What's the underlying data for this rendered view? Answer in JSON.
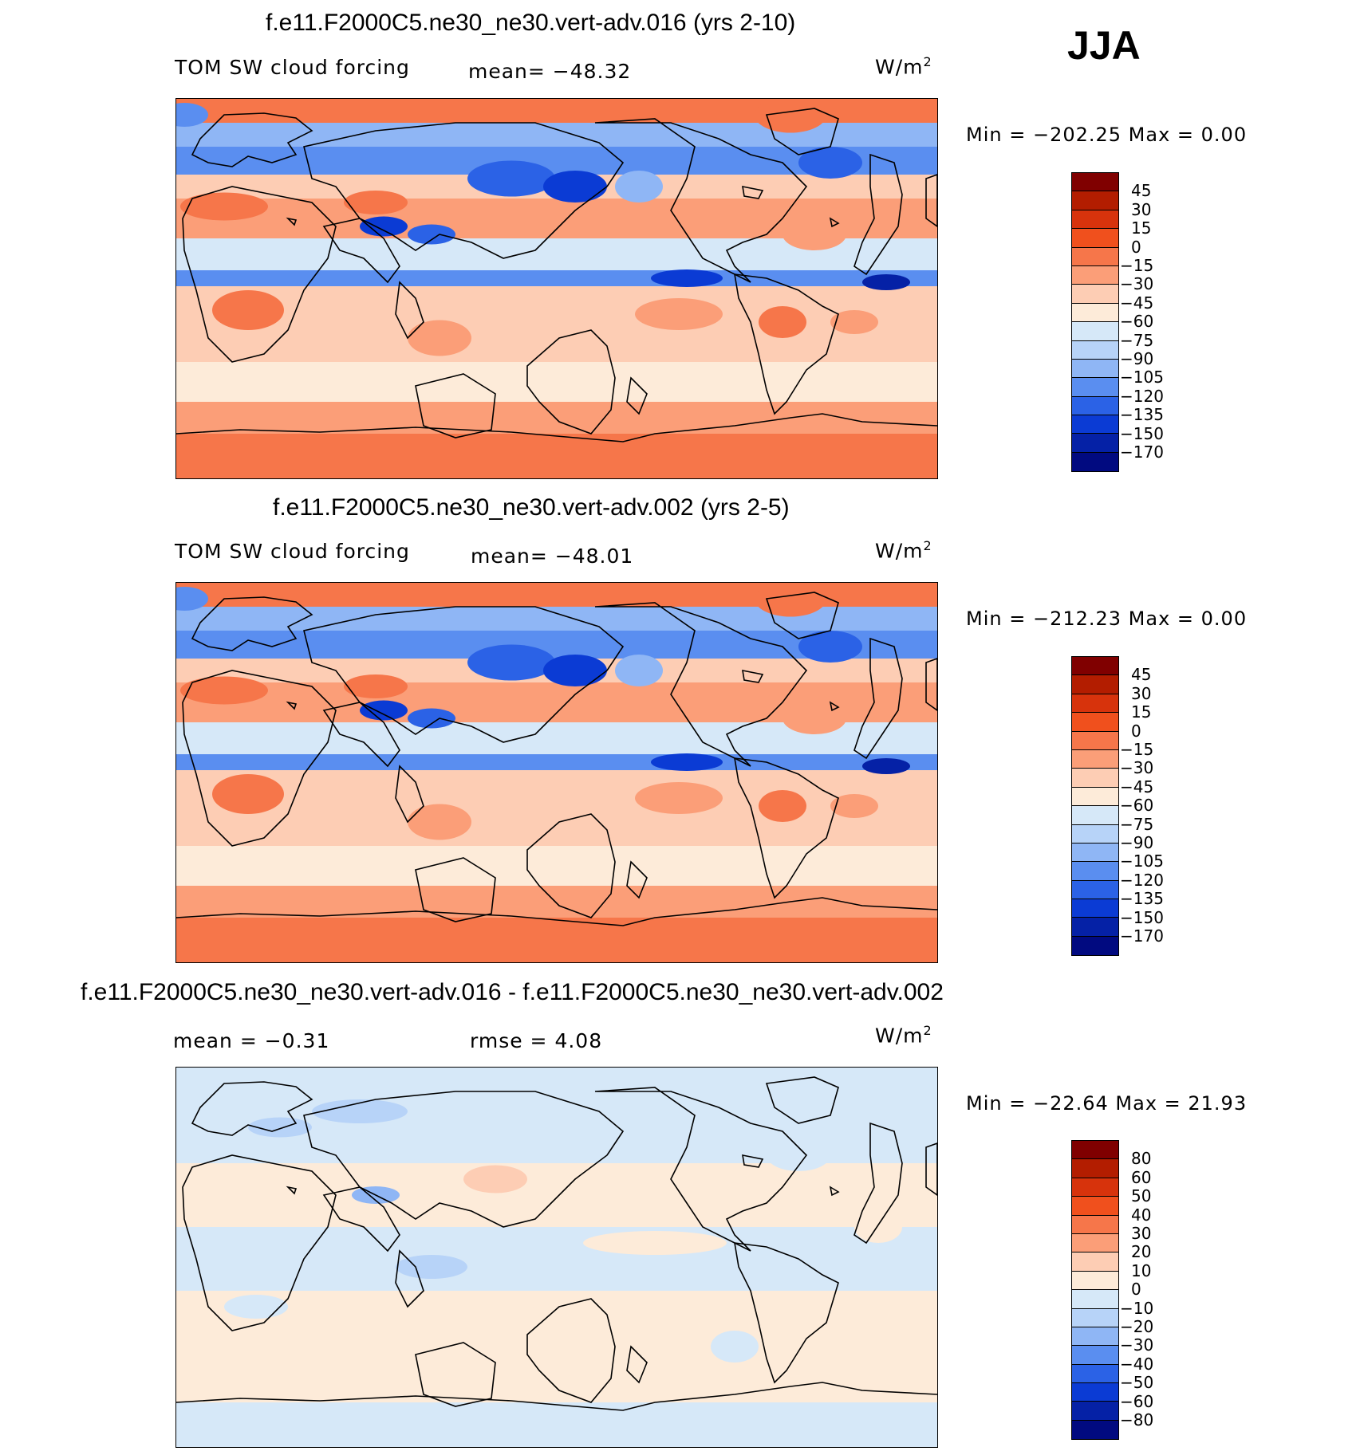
{
  "season": "JJA",
  "chart_data": [
    {
      "type": "heatmap",
      "title": "f.e11.F2000C5.ne30_ne30.vert-adv.016 (yrs 2-10)",
      "variable": "TOM SW cloud forcing",
      "mean_label": "mean= −48.32",
      "units_base": "W/m",
      "units_exp": "2",
      "min_max": "Min = −202.25 Max =    0.00",
      "min": -202.25,
      "max": 0.0,
      "colorbar": {
        "levels": [
          "45",
          "30",
          "15",
          "0",
          "−15",
          "−30",
          "−45",
          "−60",
          "−75",
          "−90",
          "−105",
          "−120",
          "−135",
          "−150",
          "−170"
        ],
        "colors": [
          "#800000",
          "#b31d00",
          "#d7330c",
          "#f0501d",
          "#f6764a",
          "#fb9e78",
          "#fdcdb4",
          "#fdebd9",
          "#d6e8f8",
          "#b7d3f8",
          "#8fb6f5",
          "#5a8ef0",
          "#2b62e6",
          "#0b3bd4",
          "#0521a6",
          "#010a80"
        ]
      }
    },
    {
      "type": "heatmap",
      "title": "f.e11.F2000C5.ne30_ne30.vert-adv.002 (yrs 2-5)",
      "variable": "TOM SW cloud forcing",
      "mean_label": "mean= −48.01",
      "units_base": "W/m",
      "units_exp": "2",
      "min_max": "Min = −212.23 Max =    0.00",
      "min": -212.23,
      "max": 0.0,
      "colorbar": {
        "levels": [
          "45",
          "30",
          "15",
          "0",
          "−15",
          "−30",
          "−45",
          "−60",
          "−75",
          "−90",
          "−105",
          "−120",
          "−135",
          "−150",
          "−170"
        ],
        "colors": [
          "#800000",
          "#b31d00",
          "#d7330c",
          "#f0501d",
          "#f6764a",
          "#fb9e78",
          "#fdcdb4",
          "#fdebd9",
          "#d6e8f8",
          "#b7d3f8",
          "#8fb6f5",
          "#5a8ef0",
          "#2b62e6",
          "#0b3bd4",
          "#0521a6",
          "#010a80"
        ]
      }
    },
    {
      "type": "heatmap",
      "title": "f.e11.F2000C5.ne30_ne30.vert-adv.016 - f.e11.F2000C5.ne30_ne30.vert-adv.002",
      "mean_label": "mean =   −0.31",
      "rmse_label": "rmse =     4.08",
      "units_base": "W/m",
      "units_exp": "2",
      "min_max": "Min = −22.64 Max =  21.93",
      "min": -22.64,
      "max": 21.93,
      "colorbar": {
        "levels": [
          "80",
          "60",
          "50",
          "40",
          "30",
          "20",
          "10",
          "0",
          "−10",
          "−20",
          "−30",
          "−40",
          "−50",
          "−60",
          "−80"
        ],
        "colors": [
          "#800000",
          "#b31d00",
          "#d7330c",
          "#f0501d",
          "#f6764a",
          "#fb9e78",
          "#fdcdb4",
          "#fdebd9",
          "#d6e8f8",
          "#b7d3f8",
          "#8fb6f5",
          "#5a8ef0",
          "#2b62e6",
          "#0b3bd4",
          "#0521a6",
          "#010a80"
        ]
      }
    }
  ]
}
